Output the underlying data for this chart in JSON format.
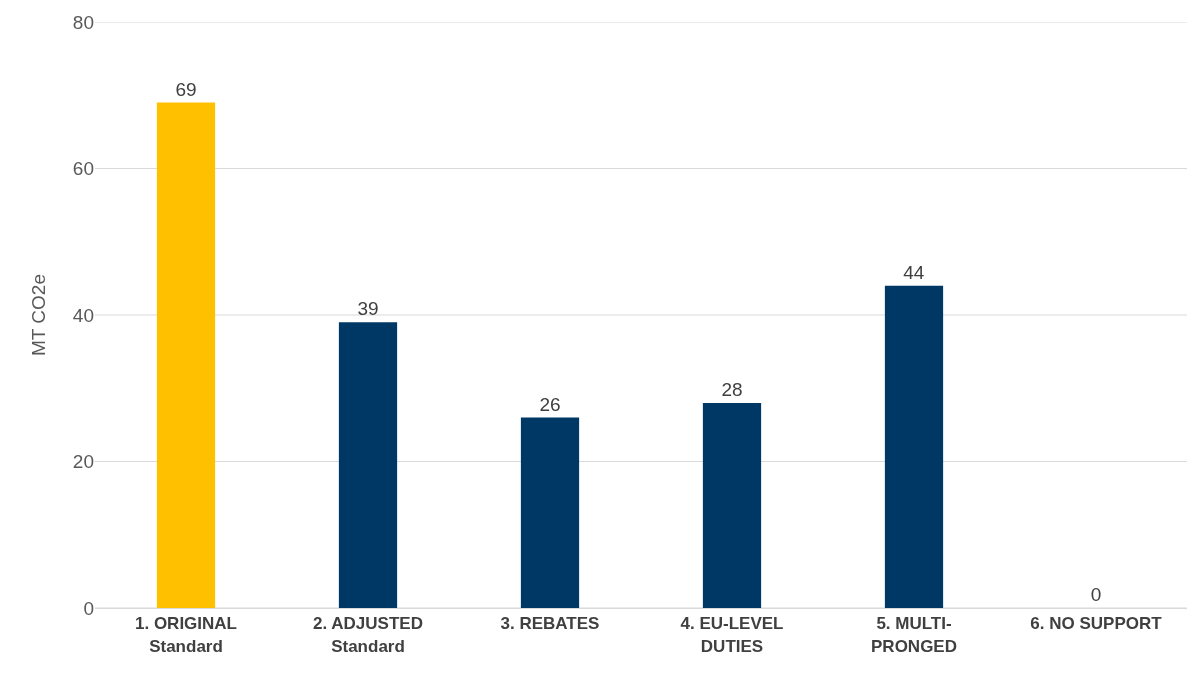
{
  "chart_data": {
    "type": "bar",
    "ylabel": "MT CO2e",
    "categories": [
      "1. ORIGINAL\nStandard",
      "2. ADJUSTED\nStandard",
      "3. REBATES",
      "4. EU-LEVEL\nDUTIES",
      "5. MULTI-\nPRONGED",
      "6. NO SUPPORT"
    ],
    "values": [
      69,
      39,
      26,
      28,
      44,
      0
    ],
    "colors": [
      "#ffc000",
      "#003865",
      "#003865",
      "#003865",
      "#003865",
      "#003865"
    ],
    "ylim": [
      0,
      80
    ],
    "yticks": [
      0,
      20,
      40,
      60,
      80
    ],
    "grid": "y",
    "data_labels": true
  }
}
